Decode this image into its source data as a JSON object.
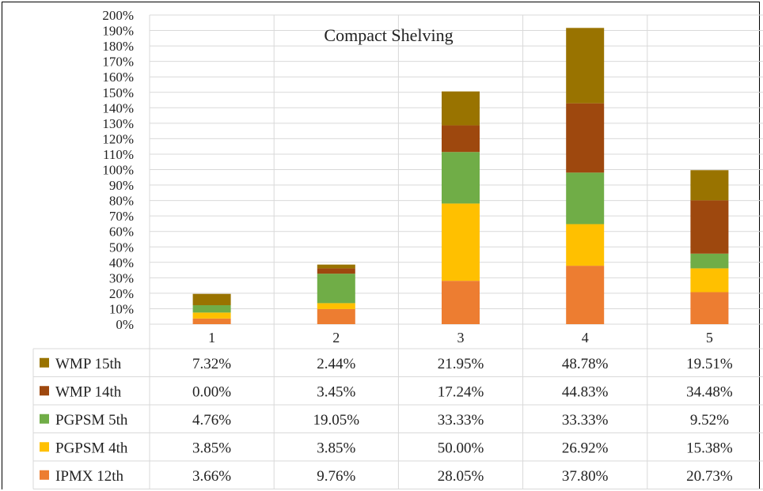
{
  "chart_data": {
    "type": "bar",
    "stacked": true,
    "title": "Compact Shelving",
    "categories": [
      "1",
      "2",
      "3",
      "4",
      "5"
    ],
    "ylim": [
      0,
      200
    ],
    "y_step": 10,
    "y_unit": "%",
    "grid": true,
    "legend": "data-table",
    "series": [
      {
        "name": "IPMX 12th",
        "color": "#ED7D31",
        "values": [
          3.66,
          9.76,
          28.05,
          37.8,
          20.73
        ],
        "labels": [
          "3.66%",
          "9.76%",
          "28.05%",
          "37.80%",
          "20.73%"
        ]
      },
      {
        "name": "PGPSM 4th",
        "color": "#FFC000",
        "values": [
          3.85,
          3.85,
          50.0,
          26.92,
          15.38
        ],
        "labels": [
          "3.85%",
          "3.85%",
          "50.00%",
          "26.92%",
          "15.38%"
        ]
      },
      {
        "name": "PGPSM 5th",
        "color": "#70AD47",
        "values": [
          4.76,
          19.05,
          33.33,
          33.33,
          9.52
        ],
        "labels": [
          "4.76%",
          "19.05%",
          "33.33%",
          "33.33%",
          "9.52%"
        ]
      },
      {
        "name": "WMP 14th",
        "color": "#9E480E",
        "values": [
          0.0,
          3.45,
          17.24,
          44.83,
          34.48
        ],
        "labels": [
          "0.00%",
          "3.45%",
          "17.24%",
          "44.83%",
          "34.48%"
        ]
      },
      {
        "name": "WMP 15th",
        "color": "#997300",
        "values": [
          7.32,
          2.44,
          21.95,
          48.78,
          19.51
        ],
        "labels": [
          "7.32%",
          "2.44%",
          "21.95%",
          "48.78%",
          "19.51%"
        ]
      }
    ]
  }
}
